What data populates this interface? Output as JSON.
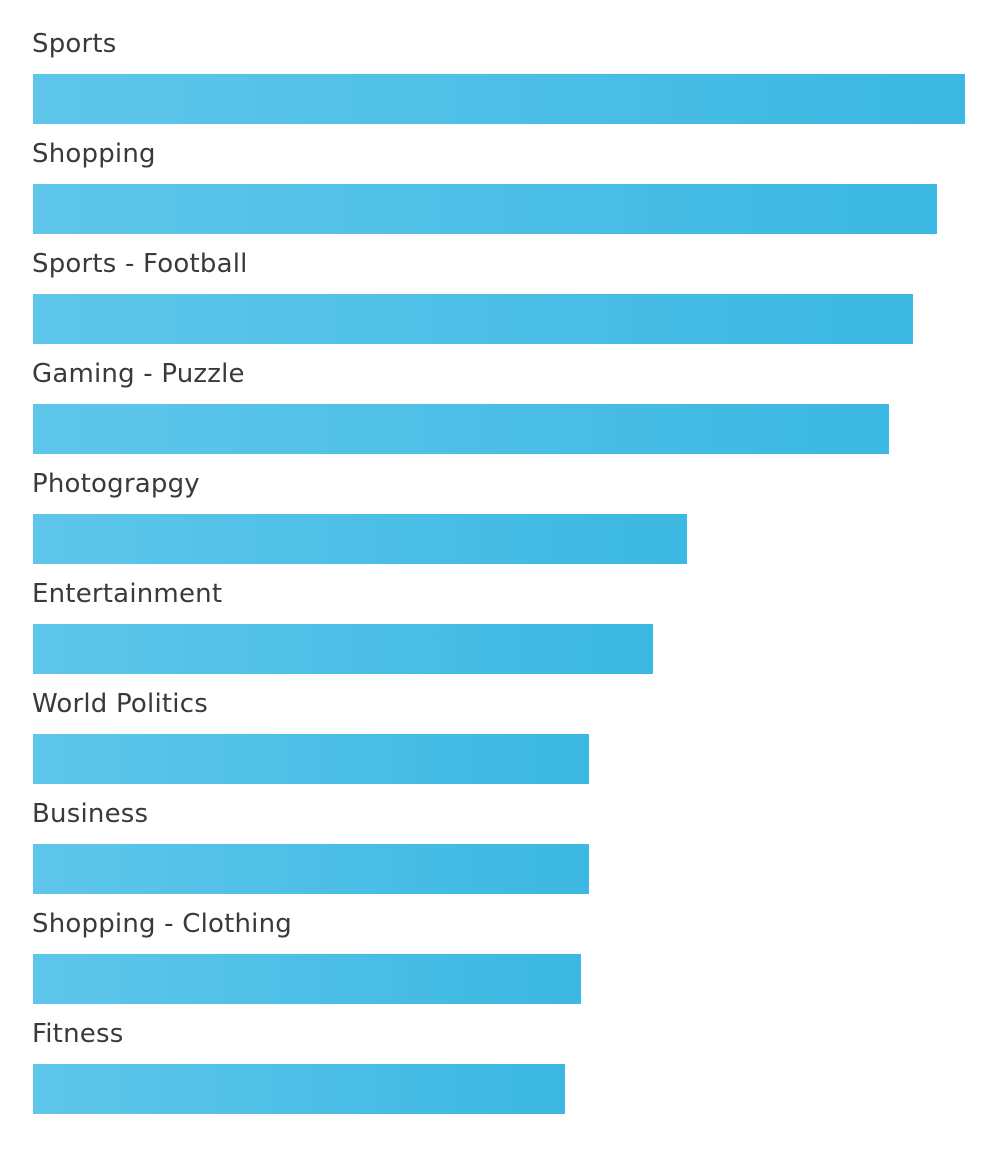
{
  "chart_data": {
    "type": "bar",
    "orientation": "horizontal",
    "categories": [
      "Sports",
      "Shopping",
      "Sports - Football",
      "Gaming - Puzzle",
      "Photograpgy",
      "Entertainment",
      "World Politics",
      "Business",
      "Shopping - Clothing",
      "Fitness"
    ],
    "values": [
      100,
      97,
      94.4,
      91.8,
      70.2,
      66.5,
      59.7,
      59.7,
      58.8,
      57.1
    ],
    "xlim": [
      0,
      100
    ],
    "title": "",
    "xlabel": "",
    "ylabel": "",
    "grid": false,
    "legend": "none"
  },
  "colors": {
    "bar_gradient_start": "#5fc6ea",
    "bar_gradient_end": "#3bb8e3",
    "label_text": "#3a3a3a",
    "background": "#ffffff"
  }
}
